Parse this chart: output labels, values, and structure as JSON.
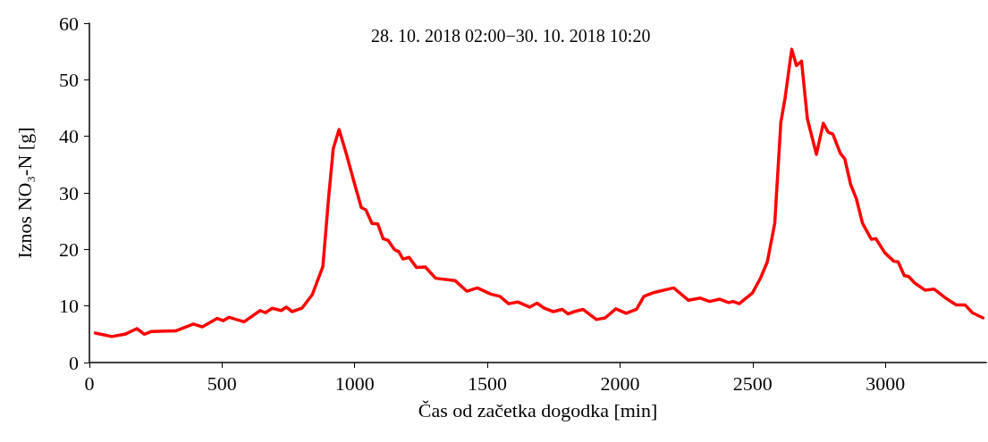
{
  "chart_data": {
    "type": "line",
    "xlabel": "Čas od začetka dogodka [min]",
    "ylabel": "Iznos NO₃-N [g]",
    "annotations": [
      "28. 10. 2018 02:00−30. 10. 2018 10:20"
    ],
    "xlim": [
      0,
      3380
    ],
    "xticks": [
      0,
      500,
      1000,
      1500,
      2000,
      2500,
      3000
    ],
    "ylim": [
      0,
      60
    ],
    "yticks": [
      0,
      10,
      20,
      30,
      40,
      50,
      60
    ],
    "grid": false,
    "marker": "none",
    "line_style": "solid",
    "series": [
      {
        "color": "#ff0000",
        "x": [
          22,
          84,
          134,
          179,
          207,
          235,
          325,
          392,
          426,
          482,
          504,
          527,
          583,
          644,
          663,
          689,
          723,
          742,
          764,
          801,
          840,
          880,
          902,
          919,
          941,
          969,
          1003,
          1025,
          1042,
          1065,
          1087,
          1107,
          1126,
          1149,
          1166,
          1182,
          1205,
          1233,
          1266,
          1305,
          1378,
          1423,
          1462,
          1513,
          1547,
          1580,
          1614,
          1659,
          1687,
          1715,
          1748,
          1782,
          1804,
          1827,
          1860,
          1911,
          1944,
          1984,
          2023,
          2062,
          2090,
          2129,
          2202,
          2258,
          2303,
          2337,
          2376,
          2409,
          2426,
          2449,
          2499,
          2530,
          2555,
          2583,
          2606,
          2622,
          2647,
          2665,
          2684,
          2706,
          2740,
          2766,
          2785,
          2802,
          2830,
          2847,
          2869,
          2891,
          2914,
          2947,
          2964,
          2998,
          3032,
          3048,
          3071,
          3088,
          3110,
          3149,
          3183,
          3233,
          3267,
          3300,
          3328,
          3368
        ],
        "values": [
          5.2,
          4.6,
          5.0,
          6.0,
          5.0,
          5.5,
          5.6,
          6.8,
          6.3,
          7.8,
          7.4,
          8.0,
          7.2,
          9.2,
          8.8,
          9.6,
          9.2,
          9.8,
          9.0,
          9.6,
          12.0,
          17.0,
          29.4,
          37.8,
          41.2,
          36.8,
          31.0,
          27.4,
          27.0,
          24.6,
          24.5,
          21.9,
          21.6,
          20.0,
          19.6,
          18.3,
          18.6,
          16.8,
          16.9,
          14.9,
          14.5,
          12.6,
          13.2,
          12.1,
          11.7,
          10.4,
          10.7,
          9.8,
          10.5,
          9.6,
          9.0,
          9.4,
          8.6,
          9.0,
          9.4,
          7.6,
          7.9,
          9.5,
          8.7,
          9.4,
          11.7,
          12.4,
          13.2,
          11.0,
          11.4,
          10.8,
          11.2,
          10.6,
          10.8,
          10.4,
          12.3,
          15.0,
          17.8,
          24.6,
          42.5,
          46.8,
          55.4,
          52.5,
          53.3,
          43.1,
          36.8,
          42.3,
          40.7,
          40.4,
          37.0,
          36.0,
          31.5,
          28.9,
          24.6,
          21.8,
          21.9,
          19.4,
          17.9,
          17.8,
          15.4,
          15.2,
          14.1,
          12.8,
          13.0,
          11.2,
          10.2,
          10.2,
          8.8,
          7.9
        ]
      }
    ]
  }
}
